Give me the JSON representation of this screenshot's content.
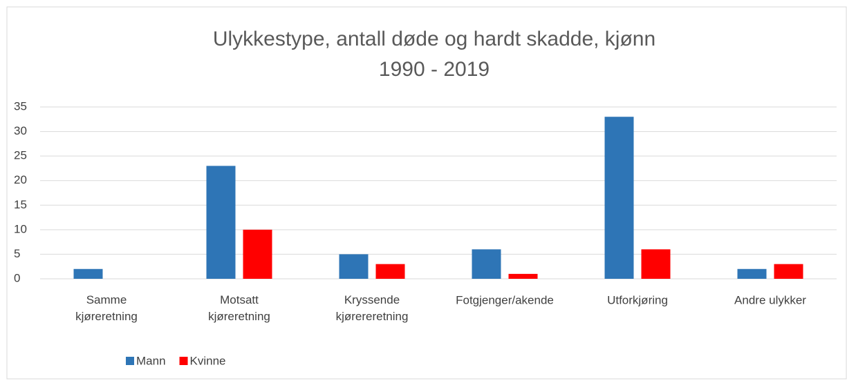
{
  "chart_data": {
    "type": "bar",
    "title": "Ulykkestype, antall døde og hardt skadde, kjønn",
    "subtitle": "1990 - 2019",
    "categories": [
      "Samme kjøreretning",
      "Motsatt kjøreretning",
      "Kryssende kjørereretning",
      "Fotgjenger/akende",
      "Utforkjøring",
      "Andre ulykker"
    ],
    "series": [
      {
        "name": "Mann",
        "color": "#2e75b6",
        "values": [
          2,
          23,
          5,
          6,
          33,
          2
        ]
      },
      {
        "name": "Kvinne",
        "color": "#ff0000",
        "values": [
          0,
          10,
          3,
          1,
          6,
          3
        ]
      }
    ],
    "ylim": [
      0,
      35
    ],
    "yticks": [
      0,
      5,
      10,
      15,
      20,
      25,
      30,
      35
    ],
    "grid": true,
    "legend": "bottom-left"
  }
}
